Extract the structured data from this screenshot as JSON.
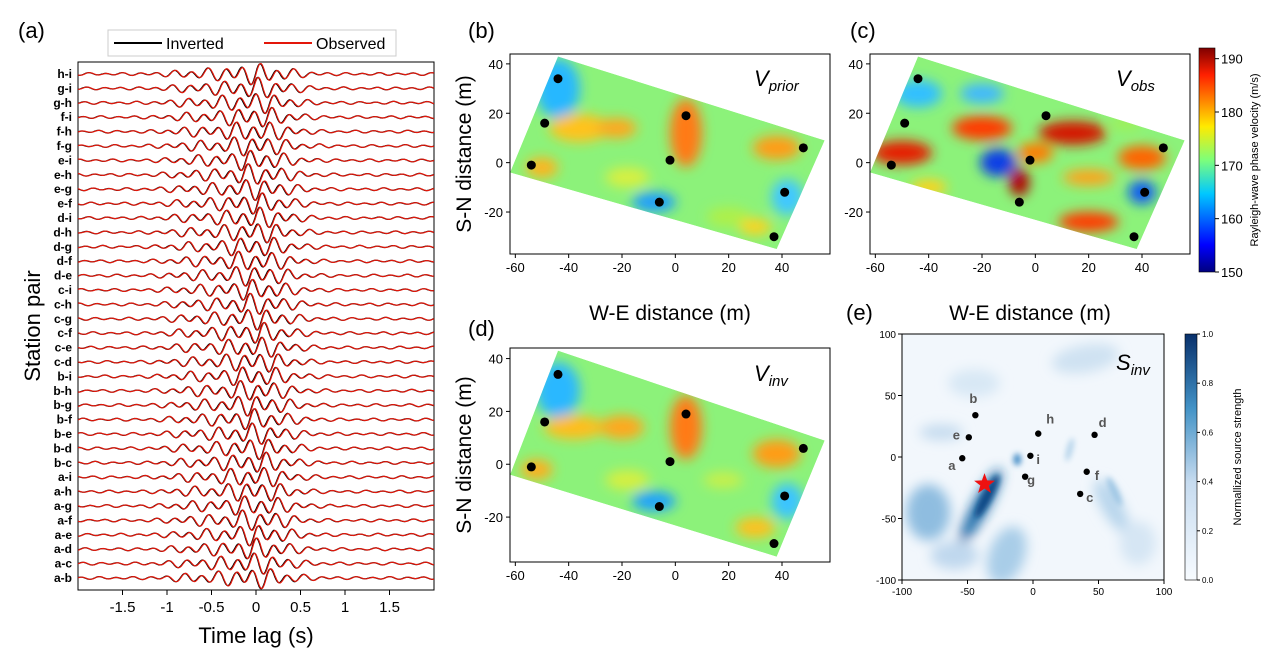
{
  "panel_labels": [
    "(a)",
    "(b)",
    "(c)",
    "(d)",
    "(e)"
  ],
  "chart_data": [
    {
      "panel": "(a)",
      "type": "line",
      "xlabel": "Time lag (s)",
      "ylabel": "Station pair",
      "xlim": [
        -2,
        2
      ],
      "xticks": [
        -1.5,
        -1,
        -0.5,
        0,
        0.5,
        1,
        1.5
      ],
      "xtick_labels": [
        "-1.5",
        "-1",
        "-0.5",
        "0",
        "0.5",
        "1",
        "1.5"
      ],
      "legend_position": "top",
      "station_pairs": [
        "h-i",
        "g-i",
        "g-h",
        "f-i",
        "f-h",
        "f-g",
        "e-i",
        "e-h",
        "e-g",
        "e-f",
        "d-i",
        "d-h",
        "d-g",
        "d-f",
        "d-e",
        "c-i",
        "c-h",
        "c-g",
        "c-f",
        "c-e",
        "c-d",
        "b-i",
        "b-h",
        "b-g",
        "b-f",
        "b-e",
        "b-d",
        "b-c",
        "a-i",
        "a-h",
        "a-g",
        "a-f",
        "a-e",
        "a-d",
        "a-c",
        "a-b"
      ],
      "series": [
        {
          "name": "Inverted",
          "color": "#000000"
        },
        {
          "name": "Observed",
          "color": "#e3170a"
        }
      ]
    },
    {
      "panel": "(b)",
      "type": "heatmap",
      "title": "V",
      "title_sub": "prior",
      "xlabel": "W-E distance (m)",
      "ylabel": "S-N distance (m)",
      "xlim": [
        -62,
        58
      ],
      "ylim": [
        -37,
        44
      ],
      "xticks": [
        -60,
        -40,
        -20,
        0,
        20,
        40
      ],
      "yticks": [
        40,
        20,
        0,
        -20
      ],
      "domain_corners": [
        [
          -44,
          43
        ],
        [
          56,
          9
        ],
        [
          38,
          -35
        ],
        [
          -62,
          -4
        ]
      ],
      "stations": [
        [
          -44,
          34
        ],
        [
          -49,
          16
        ],
        [
          -54,
          -1
        ],
        [
          4,
          19
        ],
        [
          -2,
          1
        ],
        [
          -6,
          -16
        ],
        [
          48,
          6
        ],
        [
          41,
          -12
        ],
        [
          37,
          -30
        ]
      ]
    },
    {
      "panel": "(c)",
      "type": "heatmap",
      "title": "V",
      "title_sub": "obs",
      "xlabel": "W-E distance (m)",
      "ylabel": "",
      "xlim": [
        -62,
        58
      ],
      "ylim": [
        -37,
        44
      ],
      "xticks": [
        -60,
        -40,
        -20,
        0,
        20,
        40
      ],
      "yticks": [
        40,
        20,
        0,
        -20
      ],
      "colorbar": {
        "label": "Rayleigh-wave phase velocity (m/s)",
        "range": [
          150,
          192
        ],
        "ticks": [
          190,
          180,
          170,
          160,
          150
        ]
      },
      "stations": [
        [
          -44,
          34
        ],
        [
          -49,
          16
        ],
        [
          -54,
          -1
        ],
        [
          4,
          19
        ],
        [
          -2,
          1
        ],
        [
          -6,
          -16
        ],
        [
          48,
          6
        ],
        [
          41,
          -12
        ],
        [
          37,
          -30
        ]
      ]
    },
    {
      "panel": "(d)",
      "type": "heatmap",
      "title": "V",
      "title_sub": "inv",
      "xlabel": "",
      "ylabel": "S-N distance (m)",
      "xlim": [
        -62,
        58
      ],
      "ylim": [
        -37,
        44
      ],
      "xticks": [
        -60,
        -40,
        -20,
        0,
        20,
        40
      ],
      "yticks": [
        40,
        20,
        0,
        -20
      ],
      "stations": [
        [
          -44,
          34
        ],
        [
          -49,
          16
        ],
        [
          -54,
          -1
        ],
        [
          4,
          19
        ],
        [
          -2,
          1
        ],
        [
          -6,
          -16
        ],
        [
          48,
          6
        ],
        [
          41,
          -12
        ],
        [
          37,
          -30
        ]
      ]
    },
    {
      "panel": "(e)",
      "type": "heatmap",
      "title": "S",
      "title_sub": "inv",
      "xlim": [
        -100,
        100
      ],
      "ylim": [
        -100,
        100
      ],
      "xticks": [
        -100,
        -50,
        0,
        50,
        100
      ],
      "yticks": [
        100,
        50,
        0,
        -50,
        -100
      ],
      "colorbar": {
        "label": "Normallized source strength",
        "range": [
          0,
          1
        ],
        "ticks": [
          "1.0",
          "0.8",
          "0.6",
          "0.4",
          "0.2",
          "0.0"
        ]
      },
      "source_star": [
        -37,
        -22
      ],
      "stations": [
        {
          "label": "a",
          "x": -54,
          "y": -1
        },
        {
          "label": "b",
          "x": -44,
          "y": 34
        },
        {
          "label": "c",
          "x": 36,
          "y": -30
        },
        {
          "label": "d",
          "x": 47,
          "y": 18
        },
        {
          "label": "e",
          "x": -49,
          "y": 16
        },
        {
          "label": "f",
          "x": 41,
          "y": -12
        },
        {
          "label": "g",
          "x": -6,
          "y": -16
        },
        {
          "label": "h",
          "x": 4,
          "y": 19
        },
        {
          "label": "i",
          "x": -2,
          "y": 1
        }
      ]
    }
  ]
}
